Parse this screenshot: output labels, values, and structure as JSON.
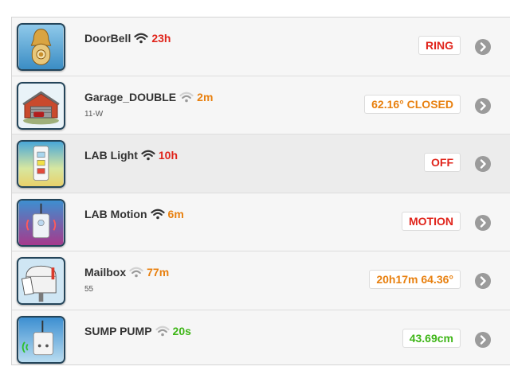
{
  "colors": {
    "red": "#e0241b",
    "orange": "#e8800f",
    "green": "#3fb618",
    "wifi_strong": "#333333",
    "wifi_weak": "#9a9a9a",
    "chevron": "#9b9b9b"
  },
  "devices": [
    {
      "name": "DoorBell",
      "age": "23h",
      "age_color": "red",
      "sub": "",
      "state": "RING",
      "state_color": "red",
      "icon": "doorbell-icon",
      "wifi": "strong"
    },
    {
      "name": "Garage_DOUBLE",
      "age": "2m",
      "age_color": "orange",
      "sub": "11-W",
      "state": "62.16° CLOSED",
      "state_color": "orange",
      "icon": "garage-icon",
      "wifi": "weak"
    },
    {
      "name": "LAB Light",
      "age": "10h",
      "age_color": "red",
      "sub": "",
      "state": "OFF",
      "state_color": "red",
      "icon": "light-switch-icon",
      "wifi": "strong"
    },
    {
      "name": "LAB Motion",
      "age": "6m",
      "age_color": "orange",
      "sub": "",
      "state": "MOTION",
      "state_color": "red",
      "icon": "motion-sensor-icon",
      "wifi": "strong"
    },
    {
      "name": "Mailbox",
      "age": "77m",
      "age_color": "orange",
      "sub": "55",
      "state": "20h17m 64.36°",
      "state_color": "orange",
      "icon": "mailbox-icon",
      "wifi": "weak"
    },
    {
      "name": "SUMP PUMP",
      "age": "20s",
      "age_color": "green",
      "sub": "",
      "state": "43.69cm",
      "state_color": "green",
      "icon": "sump-pump-sensor-icon",
      "wifi": "weak"
    }
  ]
}
